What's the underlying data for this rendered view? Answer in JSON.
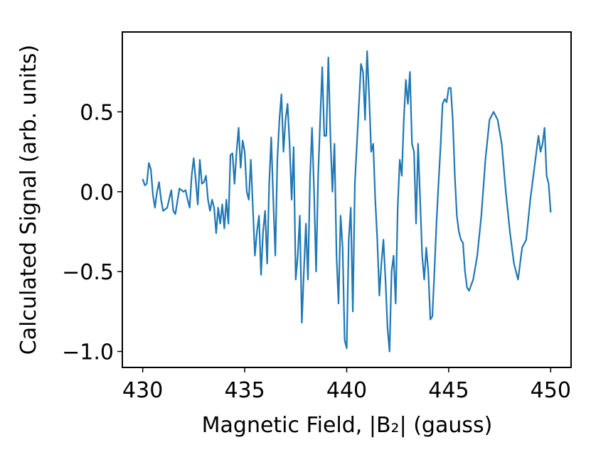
{
  "chart_data": {
    "type": "line",
    "xlabel": "Magnetic Field, |B₂| (gauss)",
    "ylabel": "Calculated Signal (arb. units)",
    "color": "#1f77b4",
    "xlim": [
      429,
      451
    ],
    "ylim": [
      -1.1,
      1.0
    ],
    "xticks": [
      430,
      435,
      440,
      445,
      450
    ],
    "yticks": [
      {
        "value": -1.0,
        "label": "−1.0"
      },
      {
        "value": -0.5,
        "label": "−0.5"
      },
      {
        "value": 0,
        "label": "0.0"
      },
      0.5
    ],
    "x": [
      430.0,
      430.1,
      430.2,
      430.3,
      430.4,
      430.5,
      430.6,
      430.7,
      430.8,
      430.9,
      431.0,
      431.2,
      431.4,
      431.5,
      431.6,
      431.8,
      432.0,
      432.1,
      432.2,
      432.3,
      432.4,
      432.5,
      432.6,
      432.7,
      432.8,
      432.9,
      433.0,
      433.1,
      433.2,
      433.3,
      433.4,
      433.5,
      433.6,
      433.7,
      433.8,
      433.9,
      434.0,
      434.1,
      434.2,
      434.3,
      434.4,
      434.5,
      434.6,
      434.7,
      434.8,
      434.9,
      435.0,
      435.1,
      435.2,
      435.3,
      435.4,
      435.5,
      435.6,
      435.7,
      435.8,
      435.9,
      436.0,
      436.1,
      436.2,
      436.3,
      436.4,
      436.5,
      436.6,
      436.7,
      436.8,
      436.9,
      437.0,
      437.1,
      437.2,
      437.3,
      437.4,
      437.5,
      437.6,
      437.7,
      437.8,
      437.9,
      438.0,
      438.1,
      438.2,
      438.3,
      438.4,
      438.5,
      438.6,
      438.7,
      438.8,
      438.9,
      439.0,
      439.1,
      439.2,
      439.3,
      439.4,
      439.5,
      439.6,
      439.7,
      439.8,
      439.9,
      440.0,
      440.1,
      440.2,
      440.3,
      440.4,
      440.5,
      440.6,
      440.7,
      440.8,
      440.9,
      441.0,
      441.1,
      441.2,
      441.3,
      441.4,
      441.5,
      441.6,
      441.7,
      441.8,
      441.9,
      442.0,
      442.1,
      442.2,
      442.3,
      442.4,
      442.5,
      442.6,
      442.7,
      442.8,
      442.9,
      443.0,
      443.1,
      443.2,
      443.3,
      443.4,
      443.5,
      443.6,
      443.7,
      443.8,
      443.9,
      444.0,
      444.1,
      444.2,
      444.3,
      444.4,
      444.5,
      444.6,
      444.7,
      444.8,
      444.9,
      445.0,
      445.1,
      445.2,
      445.3,
      445.4,
      445.5,
      445.6,
      445.7,
      445.8,
      445.9,
      446.0,
      446.2,
      446.4,
      446.6,
      446.8,
      447.0,
      447.2,
      447.4,
      447.6,
      447.8,
      448.0,
      448.2,
      448.4,
      448.6,
      448.8,
      449.0,
      449.2,
      449.4,
      449.5,
      449.6,
      449.7,
      449.8,
      449.9,
      450.0
    ],
    "values": [
      0.08,
      0.04,
      0.05,
      0.18,
      0.14,
      -0.02,
      -0.1,
      0.0,
      0.06,
      -0.05,
      -0.12,
      -0.1,
      0.01,
      -0.12,
      -0.14,
      0.02,
      0.0,
      0.01,
      -0.05,
      -0.1,
      0.1,
      0.21,
      0.07,
      -0.08,
      0.2,
      0.05,
      0.06,
      0.1,
      -0.05,
      -0.12,
      -0.05,
      -0.1,
      -0.26,
      -0.1,
      -0.2,
      -0.08,
      -0.23,
      -0.05,
      -0.2,
      0.23,
      0.24,
      0.05,
      0.25,
      0.4,
      0.15,
      0.32,
      0.25,
      0.0,
      -0.05,
      0.2,
      -0.1,
      -0.4,
      -0.25,
      -0.15,
      -0.52,
      -0.25,
      -0.12,
      -0.45,
      0.05,
      0.34,
      -0.05,
      -0.4,
      0.2,
      0.45,
      0.61,
      0.25,
      0.45,
      0.55,
      0.3,
      -0.05,
      0.28,
      -0.55,
      -0.4,
      -0.15,
      -0.82,
      -0.5,
      -0.2,
      -0.55,
      0.08,
      0.4,
      0.0,
      -0.5,
      0.1,
      0.45,
      0.78,
      0.35,
      0.35,
      0.84,
      0.35,
      0.0,
      0.3,
      -0.4,
      -0.7,
      -0.15,
      -0.35,
      -0.93,
      -0.98,
      -0.3,
      -0.1,
      -0.75,
      0.05,
      0.3,
      0.55,
      0.8,
      0.75,
      0.45,
      0.88,
      0.6,
      0.25,
      0.3,
      -0.05,
      -0.3,
      -0.65,
      -0.45,
      -0.3,
      -0.55,
      -0.85,
      -1.0,
      -0.5,
      -0.4,
      -0.7,
      -0.1,
      0.2,
      0.1,
      0.45,
      0.7,
      0.55,
      0.75,
      0.3,
      0.25,
      -0.2,
      0.3,
      -0.05,
      -0.4,
      -0.55,
      -0.35,
      -0.5,
      -0.8,
      -0.78,
      -0.5,
      -0.2,
      0.05,
      0.28,
      0.55,
      0.58,
      0.56,
      0.65,
      0.65,
      0.45,
      0.1,
      -0.15,
      -0.25,
      -0.3,
      -0.32,
      -0.5,
      -0.6,
      -0.62,
      -0.55,
      -0.4,
      -0.15,
      0.2,
      0.45,
      0.5,
      0.45,
      0.3,
      0.0,
      -0.25,
      -0.45,
      -0.55,
      -0.35,
      -0.3,
      -0.05,
      0.15,
      0.35,
      0.25,
      0.3,
      0.4,
      0.1,
      0.05,
      -0.13
    ]
  }
}
